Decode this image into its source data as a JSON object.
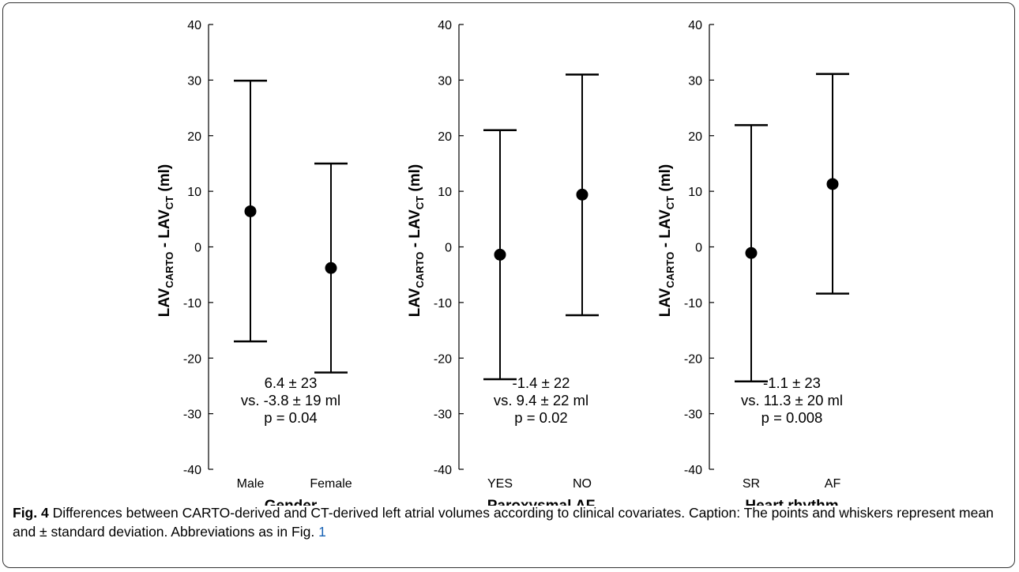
{
  "chart_data": [
    {
      "type": "errorbar",
      "ylabel_base": "LAV",
      "ylabel_sub1": "CARTO",
      "ylabel_sep": " - LAV",
      "ylabel_sub2": "CT",
      "ylabel_tail": " (ml)",
      "xlabel": "Gender",
      "ylim": [
        -40,
        40
      ],
      "yticks": [
        -40,
        -30,
        -20,
        -10,
        0,
        10,
        20,
        30,
        40
      ],
      "categories": [
        "Male",
        "Female"
      ],
      "mean": [
        6.4,
        -3.8
      ],
      "upper": [
        29.9,
        15.0
      ],
      "lower": [
        -17.0,
        -22.6
      ],
      "annotation": [
        "6.4 ± 23",
        "vs. -3.8 ± 19 ml",
        "p = 0.04"
      ]
    },
    {
      "type": "errorbar",
      "ylabel_base": "LAV",
      "ylabel_sub1": "CARTO",
      "ylabel_sep": " - LAV",
      "ylabel_sub2": "CT",
      "ylabel_tail": " (ml)",
      "xlabel": "Paroxysmal AF",
      "ylim": [
        -40,
        40
      ],
      "yticks": [
        -40,
        -30,
        -20,
        -10,
        0,
        10,
        20,
        30,
        40
      ],
      "categories": [
        "YES",
        "NO"
      ],
      "mean": [
        -1.4,
        9.4
      ],
      "upper": [
        21.0,
        31.0
      ],
      "lower": [
        -23.8,
        -12.3
      ],
      "annotation": [
        "-1.4 ± 22",
        "vs. 9.4 ± 22 ml",
        "p = 0.02"
      ]
    },
    {
      "type": "errorbar",
      "ylabel_base": "LAV",
      "ylabel_sub1": "CARTO",
      "ylabel_sep": " - LAV",
      "ylabel_sub2": "CT",
      "ylabel_tail": " (ml)",
      "xlabel": "Heart rhythm",
      "ylim": [
        -40,
        40
      ],
      "yticks": [
        -40,
        -30,
        -20,
        -10,
        0,
        10,
        20,
        30,
        40
      ],
      "categories": [
        "SR",
        "AF"
      ],
      "mean": [
        -1.1,
        11.3
      ],
      "upper": [
        21.9,
        31.1
      ],
      "lower": [
        -24.2,
        -8.4
      ],
      "annotation": [
        "-1.1 ± 23",
        "vs. 11.3 ± 20 ml",
        "p = 0.008"
      ]
    }
  ],
  "caption": {
    "label": "Fig. 4",
    "text": " Differences between CARTO-derived and CT-derived left atrial volumes according to clinical covariates. Caption: The points and whiskers represent mean and ± standard deviation. Abbreviations as in Fig. ",
    "link": "1"
  }
}
